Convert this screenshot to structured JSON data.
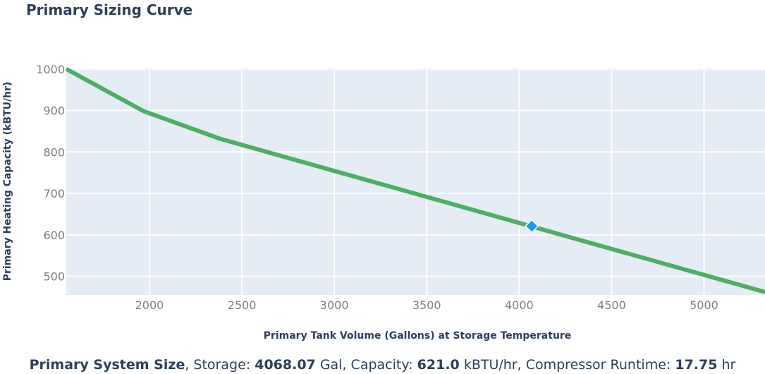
{
  "chart_data": {
    "type": "line",
    "title": "Primary Sizing Curve",
    "xlabel": "Primary Tank Volume (Gallons) at Storage Temperature",
    "ylabel": "Primary Heating Capacity (kBTU/hr)",
    "xlim": [
      1550,
      5330
    ],
    "ylim": [
      455,
      1003
    ],
    "xticks": [
      2000,
      2500,
      3000,
      3500,
      4000,
      4500,
      5000
    ],
    "yticks": [
      500,
      600,
      700,
      800,
      900,
      1000
    ],
    "grid": true,
    "series": [
      {
        "color": "#4caf63",
        "x": [
          1550,
          1970,
          2380,
          5330
        ],
        "y": [
          1000,
          898,
          832,
          462
        ]
      }
    ],
    "selected_point": {
      "x": 4068.07,
      "y": 621.0,
      "color": "#2196f3",
      "marker": "diamond"
    }
  },
  "summary": {
    "label": "Primary System Size",
    "storage_label": "Storage:",
    "storage_value": "4068.07",
    "storage_unit": "Gal,",
    "capacity_label": "Capacity:",
    "capacity_value": "621.0",
    "capacity_unit": "kBTU/hr,",
    "runtime_label": "Compressor Runtime:",
    "runtime_value": "17.75",
    "runtime_unit": "hr"
  }
}
